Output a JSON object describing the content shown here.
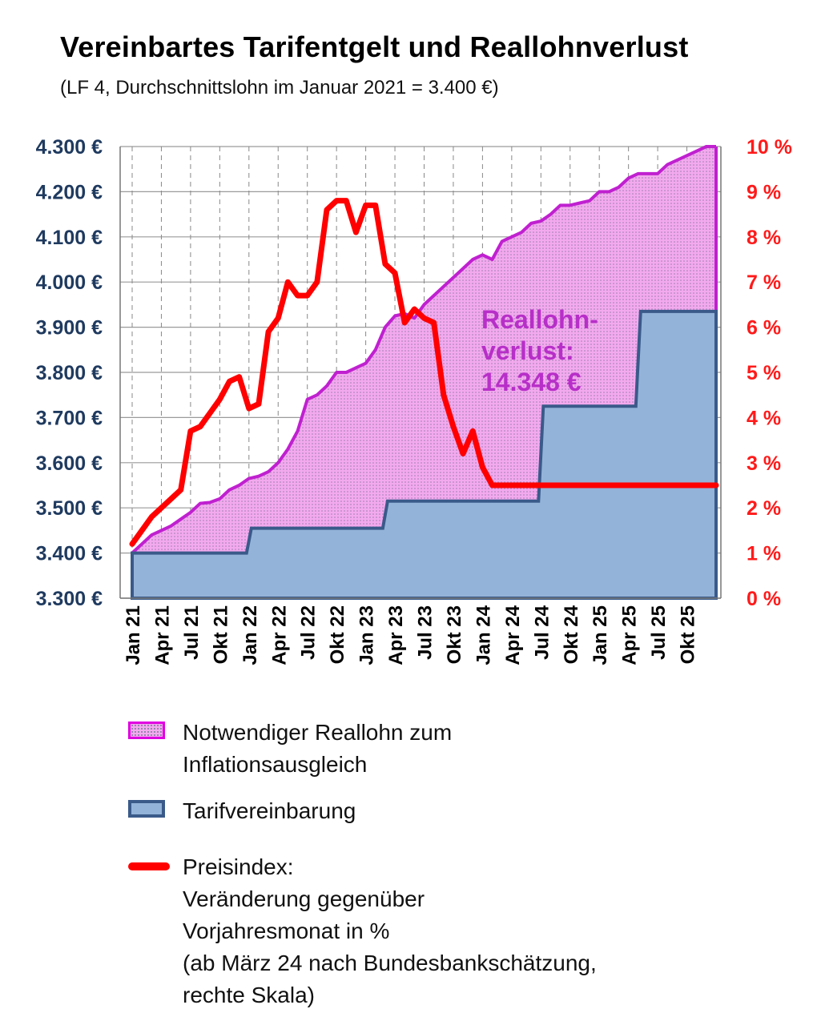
{
  "title": "Vereinbartes Tarifentgelt und Reallohnverlust",
  "subtitle": "(LF 4, Durchschnittslohn im Januar 2021 = 3.400 €)",
  "chart_data": {
    "type": "area",
    "title": "Vereinbartes Tarifentgelt und Reallohnverlust",
    "subtitle": "(LF 4, Durchschnittslohn im Januar 2021 = 3.400 €)",
    "x_tick_labels": [
      "Jan 21",
      "Apr 21",
      "Jul 21",
      "Okt 21",
      "Jan 22",
      "Apr 22",
      "Jul 22",
      "Okt 22",
      "Jan 23",
      "Apr 23",
      "Jul 23",
      "Okt 23",
      "Jan 24",
      "Apr 24",
      "Jul 24",
      "Okt 24",
      "Jan 25",
      "Apr 25",
      "Jul 25",
      "Okt 25"
    ],
    "y_left": {
      "min": 3300,
      "max": 4300,
      "step": 100,
      "tick_labels": [
        "3.300 €",
        "3.400 €",
        "3.500 €",
        "3.600 €",
        "3.700 €",
        "3.800 €",
        "3.900 €",
        "4.000 €",
        "4.100 €",
        "4.200 €",
        "4.300 €"
      ]
    },
    "y_right": {
      "min": 0,
      "max": 10,
      "step": 1,
      "tick_labels": [
        "0 %",
        "1 %",
        "2 %",
        "3 %",
        "4 %",
        "5 %",
        "6 %",
        "7 %",
        "8 %",
        "9 %",
        "10 %"
      ]
    },
    "grid": "vertical-dashed-and-horizontal",
    "colors": {
      "pink_fill": "#f3a9ee",
      "pink_line": "#c020d0",
      "blue_fill": "#94b3d8",
      "blue_line": "#3a5a8a",
      "red_line": "#ff0000"
    },
    "series": [
      {
        "name": "Notwendiger Reallohn zum Inflationsausgleich",
        "axis": "left",
        "style": "area",
        "values": [
          3400,
          3420,
          3440,
          3450,
          3460,
          3475,
          3490,
          3510,
          3512,
          3520,
          3540,
          3550,
          3565,
          3570,
          3580,
          3600,
          3630,
          3670,
          3740,
          3750,
          3770,
          3800,
          3800,
          3810,
          3820,
          3850,
          3900,
          3925,
          3930,
          3920,
          3950,
          3970,
          3990,
          4010,
          4030,
          4050,
          4060,
          4050,
          4090,
          4100,
          4110,
          4130,
          4135,
          4150,
          4170,
          4170,
          4175,
          4180,
          4200,
          4200,
          4210,
          4230,
          4240,
          4240,
          4240,
          4260,
          4270,
          4280,
          4290,
          4300,
          4300
        ]
      },
      {
        "name": "Tarifvereinbarung",
        "axis": "left",
        "style": "area-step",
        "values": [
          3400,
          3400,
          3400,
          3400,
          3400,
          3400,
          3400,
          3400,
          3400,
          3400,
          3400,
          3400,
          3455,
          3455,
          3455,
          3455,
          3455,
          3455,
          3455,
          3455,
          3455,
          3455,
          3455,
          3455,
          3455,
          3455,
          3515,
          3515,
          3515,
          3515,
          3515,
          3515,
          3515,
          3515,
          3515,
          3515,
          3515,
          3515,
          3515,
          3515,
          3515,
          3515,
          3725,
          3725,
          3725,
          3725,
          3725,
          3725,
          3725,
          3725,
          3725,
          3725,
          3935,
          3935,
          3935,
          3935,
          3935,
          3935,
          3935,
          3935,
          3935
        ]
      },
      {
        "name": "Preisindex: Veränderung gegenüber Vorjahresmonat in %",
        "axis": "right",
        "style": "line",
        "values": [
          1.2,
          1.5,
          1.8,
          2.0,
          2.2,
          2.4,
          3.7,
          3.8,
          4.1,
          4.4,
          4.8,
          4.9,
          4.2,
          4.3,
          5.9,
          6.2,
          7.0,
          6.7,
          6.7,
          7.0,
          8.6,
          8.8,
          8.8,
          8.1,
          8.7,
          8.7,
          7.4,
          7.2,
          6.1,
          6.4,
          6.2,
          6.1,
          4.5,
          3.8,
          3.2,
          3.7,
          2.9,
          2.5,
          2.5,
          2.5,
          2.5,
          2.5,
          2.5,
          2.5,
          2.5,
          2.5,
          2.5,
          2.5,
          2.5,
          2.5,
          2.5,
          2.5,
          2.5,
          2.5,
          2.5,
          2.5,
          2.5,
          2.5,
          2.5,
          2.5,
          2.5
        ]
      }
    ],
    "annotation": {
      "lines": [
        "Reallohn-",
        "verlust:",
        "14.348 €"
      ]
    }
  },
  "legend": {
    "items": [
      {
        "lines": [
          "Notwendiger Reallohn zum",
          "Inflationsausgleich"
        ]
      },
      {
        "lines": [
          "Tarifvereinbarung"
        ]
      },
      {
        "lines": [
          "Preisindex:",
          "Veränderung gegenüber",
          "Vorjahresmonat in %",
          "(ab März 24 nach Bundesbankschätzung,",
          "rechte Skala)"
        ]
      }
    ]
  }
}
